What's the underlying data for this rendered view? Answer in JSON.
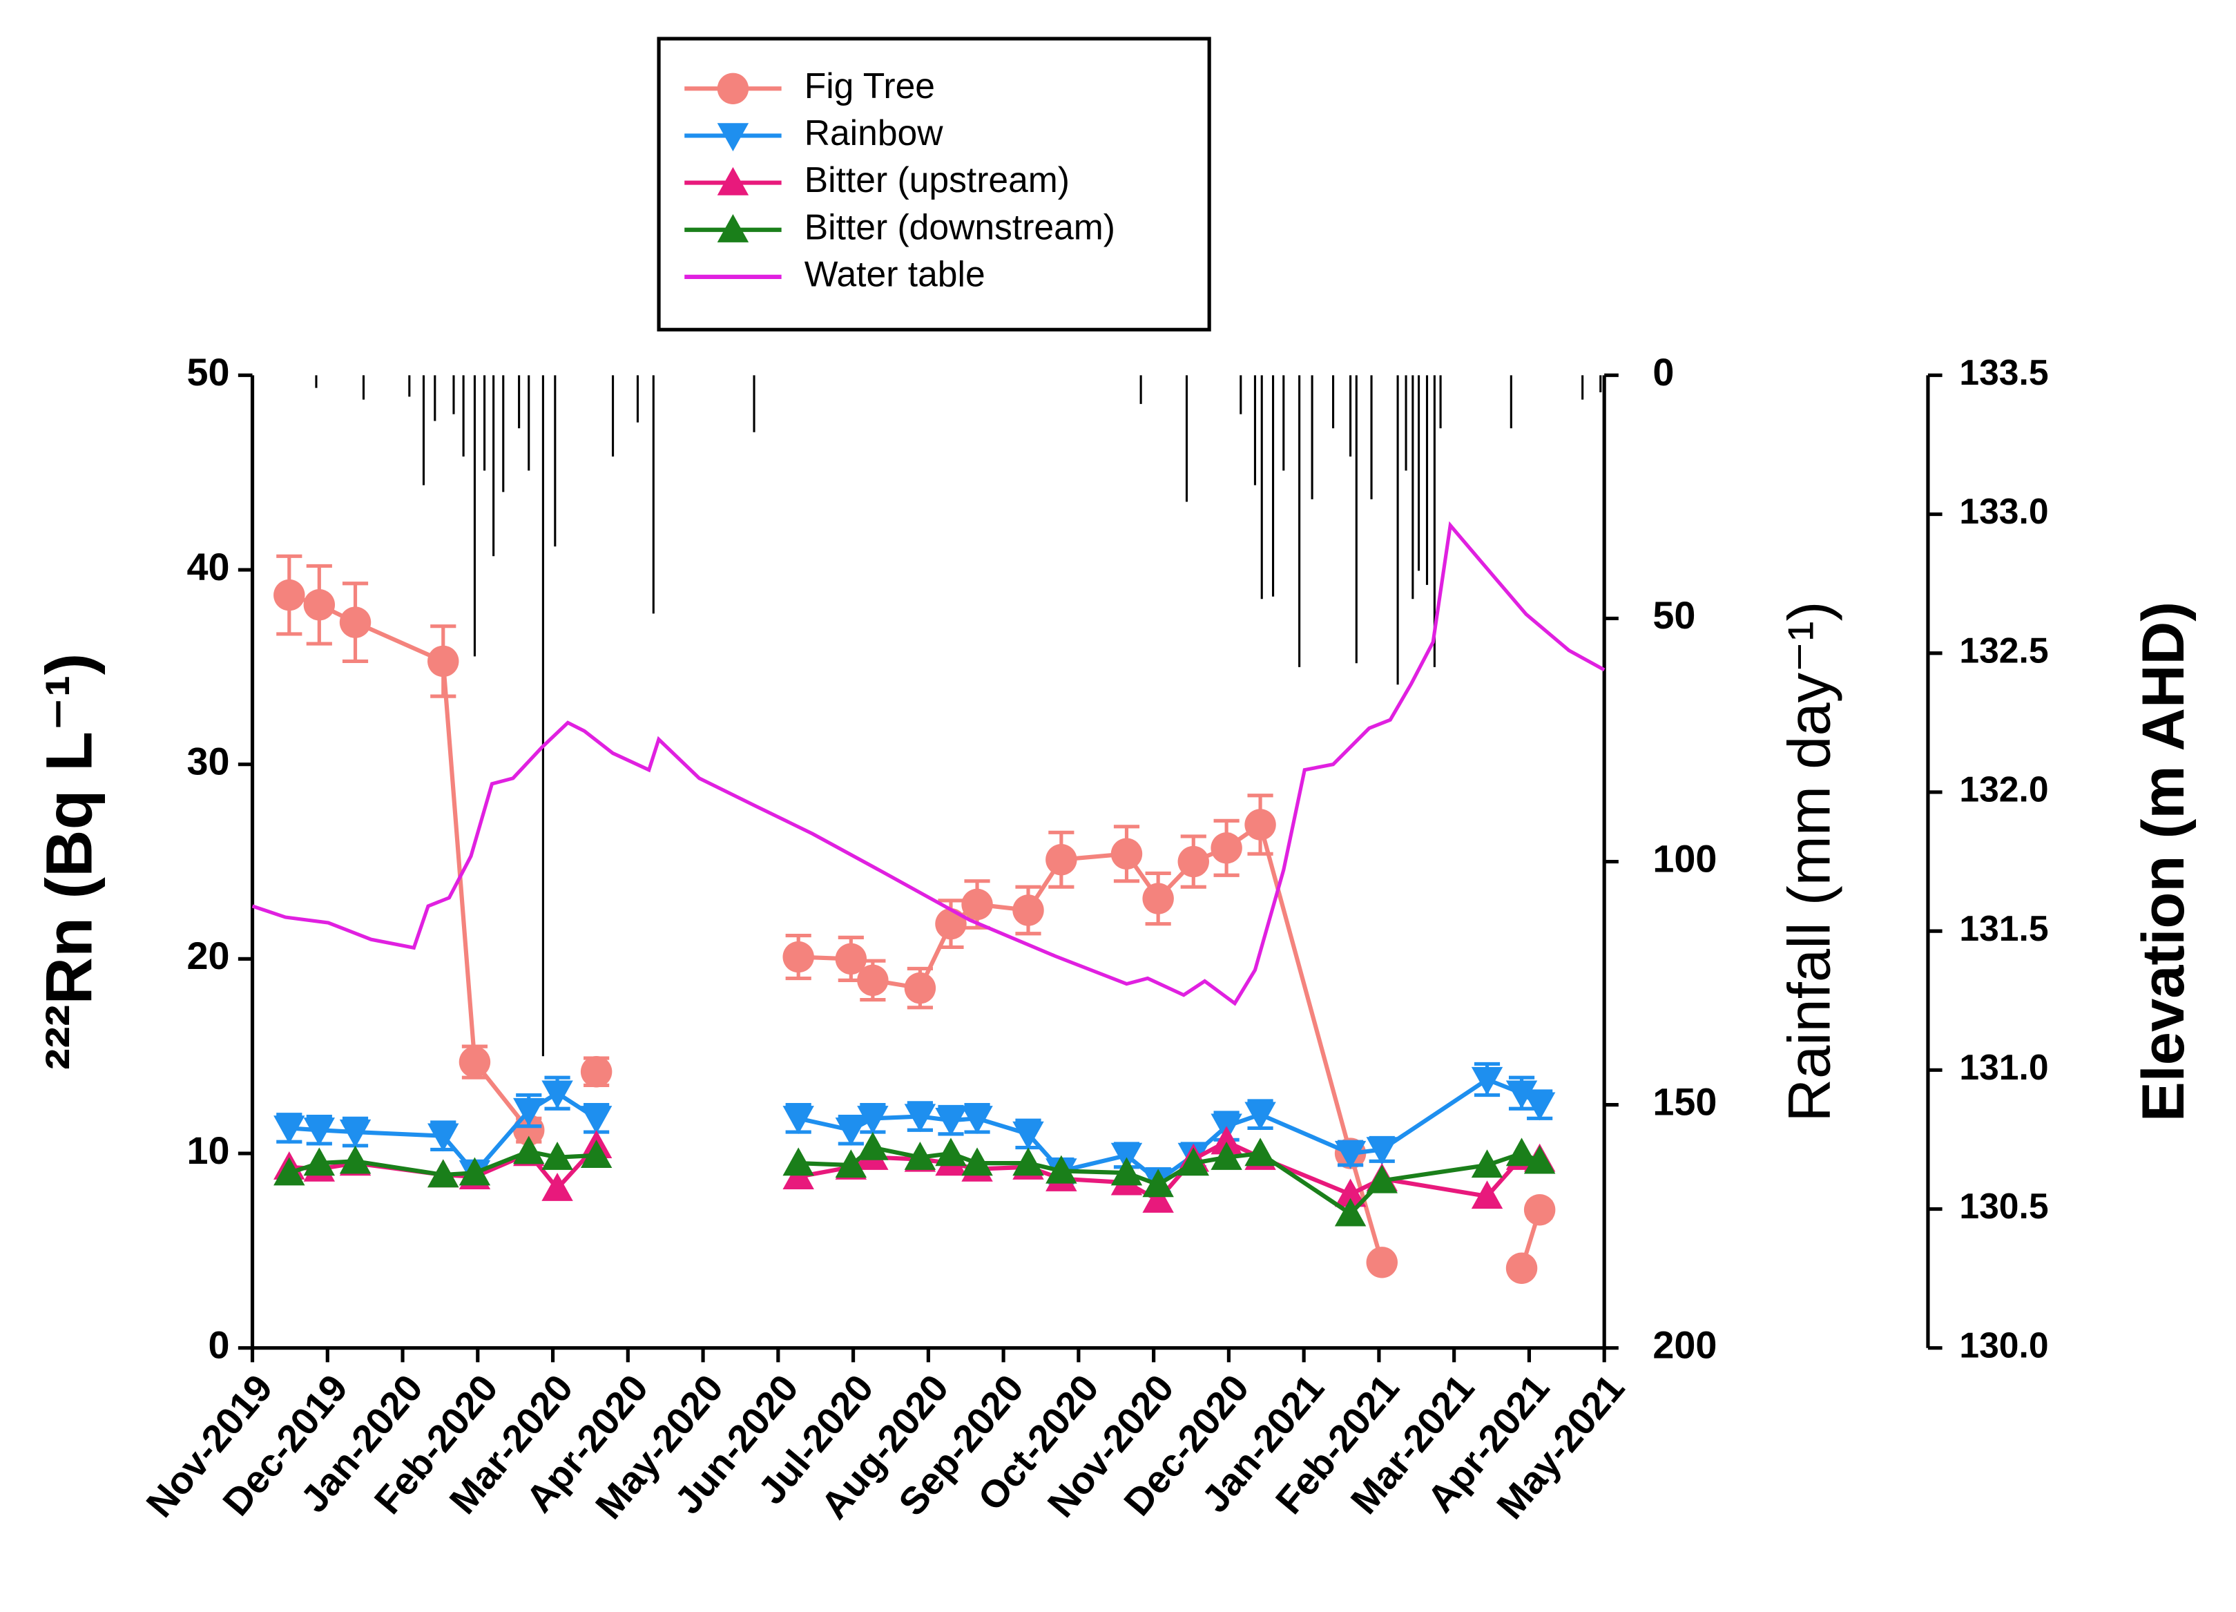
{
  "chart_data": {
    "type": "line",
    "ylabel": "²²²Rn (Bq L⁻¹)",
    "y2label": "Elevation (m AHD)",
    "y3label": "Rainfall (mm day⁻¹)",
    "xlim": [
      0,
      18
    ],
    "xticks": [
      {
        "value": 0,
        "label": "Nov-2019"
      },
      {
        "value": 1,
        "label": "Dec-2019"
      },
      {
        "value": 2,
        "label": "Jan-2020"
      },
      {
        "value": 3,
        "label": "Feb-2020"
      },
      {
        "value": 4,
        "label": "Mar-2020"
      },
      {
        "value": 5,
        "label": "Apr-2020"
      },
      {
        "value": 6,
        "label": "May-2020"
      },
      {
        "value": 7,
        "label": "Jun-2020"
      },
      {
        "value": 8,
        "label": "Jul-2020"
      },
      {
        "value": 9,
        "label": "Aug-2020"
      },
      {
        "value": 10,
        "label": "Sep-2020"
      },
      {
        "value": 11,
        "label": "Oct-2020"
      },
      {
        "value": 12,
        "label": "Nov-2020"
      },
      {
        "value": 13,
        "label": "Dec-2020"
      },
      {
        "value": 14,
        "label": "Jan-2021"
      },
      {
        "value": 15,
        "label": "Feb-2021"
      },
      {
        "value": 16,
        "label": "Mar-2021"
      },
      {
        "value": 17,
        "label": "Apr-2021"
      },
      {
        "value": 18,
        "label": "May-2021"
      }
    ],
    "ylim": [
      0,
      50
    ],
    "yticks": [
      0,
      10,
      20,
      30,
      40,
      50
    ],
    "y2lim": [
      130,
      133.5
    ],
    "y2ticks": [
      {
        "value": 130,
        "label": "130.0"
      },
      130.5,
      {
        "value": 131,
        "label": "131.0"
      },
      131.5,
      {
        "value": 132,
        "label": "132.0"
      },
      132.5,
      {
        "value": 133,
        "label": "133.0"
      },
      133.5
    ],
    "y3lim": [
      200,
      0
    ],
    "y3ticks": [
      0,
      50,
      100,
      150,
      200
    ],
    "legend": "top-center",
    "series": [
      {
        "name": "Fig Tree",
        "color": "#f4837d",
        "marker": "circle",
        "x": [
          0.49,
          0.89,
          1.37,
          2.54,
          2.96,
          3.68,
          null,
          4.58,
          null,
          7.27,
          7.97,
          8.26,
          8.89,
          9.3,
          9.65,
          10.33,
          10.77,
          11.64,
          12.06,
          12.53,
          12.97,
          13.42,
          14.62,
          15.04,
          null,
          16.9,
          17.14
        ],
        "values": [
          38.7,
          38.2,
          37.3,
          35.3,
          14.7,
          11.2,
          null,
          14.2,
          null,
          20.1,
          20.0,
          18.9,
          18.5,
          21.8,
          22.8,
          22.5,
          25.1,
          25.4,
          23.1,
          25.0,
          25.7,
          26.9,
          10.0,
          4.4,
          null,
          4.1,
          7.1
        ],
        "errors": [
          2.0,
          2.0,
          2.0,
          1.8,
          0.8,
          0.6,
          null,
          0.7,
          null,
          1.1,
          1.1,
          1.0,
          1.0,
          1.2,
          1.2,
          1.2,
          1.4,
          1.4,
          1.3,
          1.3,
          1.4,
          1.5,
          0.6,
          0.3,
          null,
          0.3,
          0.4
        ]
      },
      {
        "name": "Rainbow",
        "color": "#1e8fef",
        "marker": "triangle-down",
        "x": [
          0.49,
          0.89,
          1.37,
          2.54,
          2.96,
          3.68,
          4.06,
          4.58,
          null,
          7.27,
          7.97,
          8.26,
          8.89,
          9.3,
          9.65,
          10.33,
          10.77,
          11.64,
          12.06,
          12.53,
          12.97,
          13.42,
          14.62,
          15.04,
          16.44,
          16.9,
          17.14
        ],
        "values": [
          11.3,
          11.2,
          11.1,
          10.9,
          9.0,
          12.2,
          13.1,
          11.8,
          null,
          11.8,
          11.2,
          11.8,
          11.9,
          11.7,
          11.8,
          11.0,
          9.1,
          9.9,
          8.6,
          9.9,
          11.4,
          12.0,
          10.0,
          10.2,
          13.8,
          13.1,
          12.5
        ],
        "errors": [
          0.7,
          0.7,
          0.7,
          0.7,
          0.6,
          0.8,
          0.8,
          0.7,
          null,
          0.7,
          0.7,
          0.7,
          0.7,
          0.7,
          0.7,
          0.7,
          0.6,
          0.6,
          0.6,
          0.6,
          0.7,
          0.7,
          0.6,
          0.6,
          0.8,
          0.8,
          0.7
        ]
      },
      {
        "name": "Bitter (upstream)",
        "color": "#e8197c",
        "marker": "triangle-up",
        "x": [
          0.49,
          0.89,
          1.37,
          2.54,
          2.96,
          3.68,
          4.06,
          4.58,
          null,
          7.27,
          7.97,
          8.26,
          8.89,
          9.3,
          9.65,
          10.33,
          10.77,
          11.64,
          12.06,
          12.53,
          12.97,
          13.42,
          14.62,
          15.04,
          16.44,
          16.9,
          17.14
        ],
        "values": [
          9.3,
          9.2,
          9.5,
          8.9,
          8.8,
          10.0,
          8.2,
          10.4,
          null,
          8.8,
          9.3,
          9.8,
          9.7,
          9.5,
          9.2,
          9.3,
          8.7,
          8.5,
          7.6,
          9.7,
          10.6,
          9.8,
          7.9,
          8.7,
          7.8,
          9.8,
          9.7
        ]
      },
      {
        "name": "Bitter (downstream)",
        "color": "#1a7f1a",
        "marker": "triangle-up",
        "x": [
          0.49,
          0.89,
          1.37,
          2.54,
          2.96,
          3.68,
          4.06,
          4.58,
          null,
          7.27,
          7.97,
          8.26,
          8.89,
          9.3,
          9.65,
          10.33,
          10.77,
          11.64,
          12.06,
          12.53,
          12.97,
          13.42,
          14.62,
          15.04,
          16.44,
          16.9,
          17.14
        ],
        "values": [
          9.0,
          9.5,
          9.6,
          8.9,
          9.0,
          10.1,
          9.8,
          9.9,
          null,
          9.5,
          9.4,
          10.3,
          9.8,
          10.0,
          9.5,
          9.5,
          9.1,
          9.0,
          8.4,
          9.5,
          9.8,
          10.0,
          6.9,
          8.6,
          9.4,
          10.0,
          9.6
        ]
      },
      {
        "name": "Water table",
        "color": "#e020e0",
        "marker": "none",
        "axis": "y2",
        "x": [
          0,
          0.44,
          1.01,
          1.58,
          2.15,
          2.34,
          2.62,
          2.91,
          3.19,
          3.47,
          3.85,
          4.2,
          4.42,
          4.8,
          5.28,
          5.41,
          5.95,
          6.7,
          7.46,
          8.41,
          9.55,
          10.69,
          11.64,
          11.92,
          12.4,
          12.68,
          13.08,
          13.35,
          13.73,
          14.01,
          14.39,
          14.87,
          15.15,
          15.43,
          15.72,
          15.95,
          16.39,
          16.96,
          17.53,
          18.0
        ],
        "values": [
          131.59,
          131.55,
          131.53,
          131.47,
          131.44,
          131.59,
          131.62,
          131.77,
          132.03,
          132.05,
          132.16,
          132.25,
          132.22,
          132.14,
          132.08,
          132.19,
          132.05,
          131.95,
          131.85,
          131.71,
          131.54,
          131.41,
          131.31,
          131.33,
          131.27,
          131.32,
          131.24,
          131.36,
          131.72,
          132.08,
          132.1,
          132.23,
          132.26,
          132.39,
          132.54,
          132.96,
          132.82,
          132.64,
          132.51,
          132.44
        ]
      }
    ],
    "rainfall": {
      "color": "#000000",
      "axis": "y3",
      "x": [
        0.85,
        1.48,
        2.09,
        2.28,
        2.43,
        2.68,
        2.81,
        2.96,
        3.09,
        3.21,
        3.34,
        3.55,
        3.68,
        3.87,
        4.03,
        4.8,
        5.13,
        5.34,
        6.68,
        11.83,
        12.44,
        13.16,
        13.35,
        13.44,
        13.59,
        13.73,
        13.94,
        14.11,
        14.39,
        14.62,
        14.7,
        14.9,
        15.25,
        15.36,
        15.45,
        15.53,
        15.64,
        15.74,
        15.82,
        16.76,
        17.71,
        17.95
      ],
      "values": [
        2.6,
        5,
        4.4,
        22.6,
        9.4,
        8,
        16.7,
        57.8,
        19.6,
        37.2,
        24,
        10.9,
        19.6,
        140,
        35.2,
        16.7,
        9.7,
        49,
        11.7,
        5.9,
        26,
        8,
        22.6,
        46,
        45.5,
        19.6,
        60,
        25.5,
        10.9,
        16.7,
        59.2,
        25.5,
        63.6,
        19.6,
        46,
        40.2,
        43.1,
        60,
        10.9,
        10.9,
        5,
        3.5
      ]
    }
  }
}
